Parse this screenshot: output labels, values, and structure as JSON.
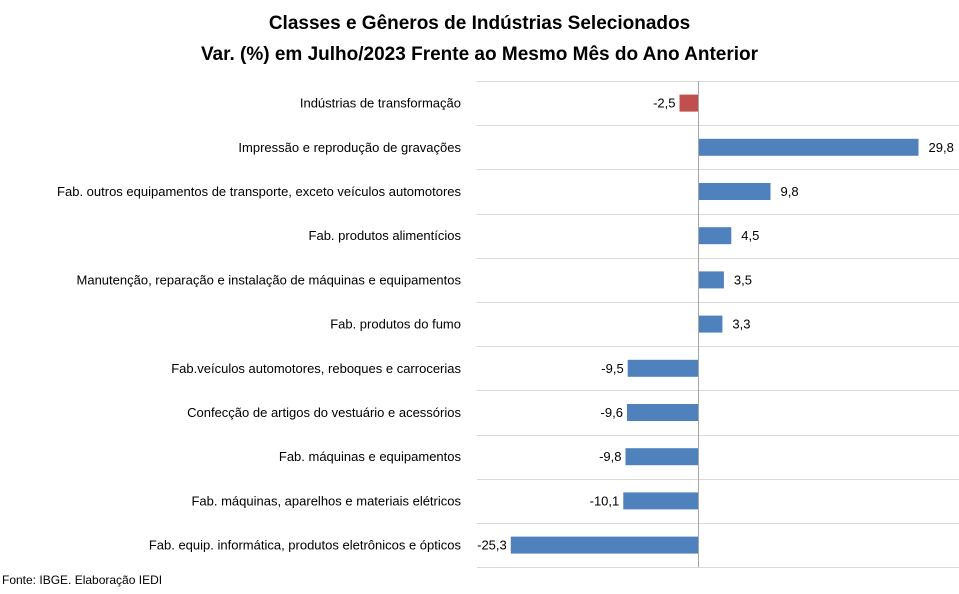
{
  "chart_data": {
    "type": "bar",
    "orientation": "horizontal",
    "title": "Classes e Gêneros de Indústrias Selecionados",
    "subtitle": "Var. (%) em Julho/2023 Frente ao Mesmo Mês do Ano Anterior",
    "categories": [
      "Indústrias de transformação",
      "Impressão e reprodução de gravações",
      "Fab. outros equipamentos de transporte, exceto veículos automotores",
      "Fab. produtos alimentícios",
      "Manutenção, reparação e instalação de máquinas e equipamentos",
      "Fab. produtos do fumo",
      "Fab.veículos automotores, reboques e carrocerias",
      "Confecção de artigos do vestuário e acessórios",
      "Fab. máquinas e equipamentos",
      "Fab. máquinas, aparelhos e materiais elétricos",
      "Fab. equip. informática, produtos eletrônicos e ópticos"
    ],
    "values": [
      -2.5,
      29.8,
      9.8,
      4.5,
      3.5,
      3.3,
      -9.5,
      -9.6,
      -9.8,
      -10.1,
      -25.3
    ],
    "value_labels": [
      "-2,5",
      "29,8",
      "9,8",
      "4,5",
      "3,5",
      "3,3",
      "-9,5",
      "-9,6",
      "-9,8",
      "-10,1",
      "-25,3"
    ],
    "xlim": [
      -27,
      30
    ],
    "grid": "horizontal lines between categories",
    "legend": "none",
    "colors": {
      "highlight": "#c0504d",
      "default": "#4f81bd",
      "grid": "#d9d9d9",
      "axis": "#a6a6a6"
    }
  },
  "footer": {
    "source": "Fonte: IBGE. Elaboração IEDI"
  }
}
